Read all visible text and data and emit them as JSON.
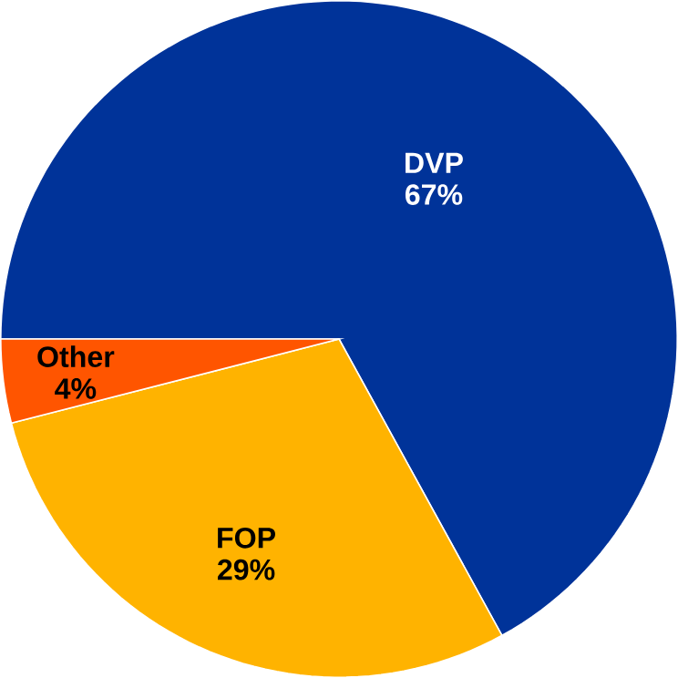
{
  "chart_data": {
    "type": "pie",
    "categories": [
      "DVP",
      "FOP",
      "Other"
    ],
    "values": [
      67,
      29,
      4
    ],
    "colors": [
      "#003399",
      "#ffb300",
      "#ff5500"
    ],
    "value_labels": [
      "67%",
      "29%",
      "4%"
    ]
  }
}
